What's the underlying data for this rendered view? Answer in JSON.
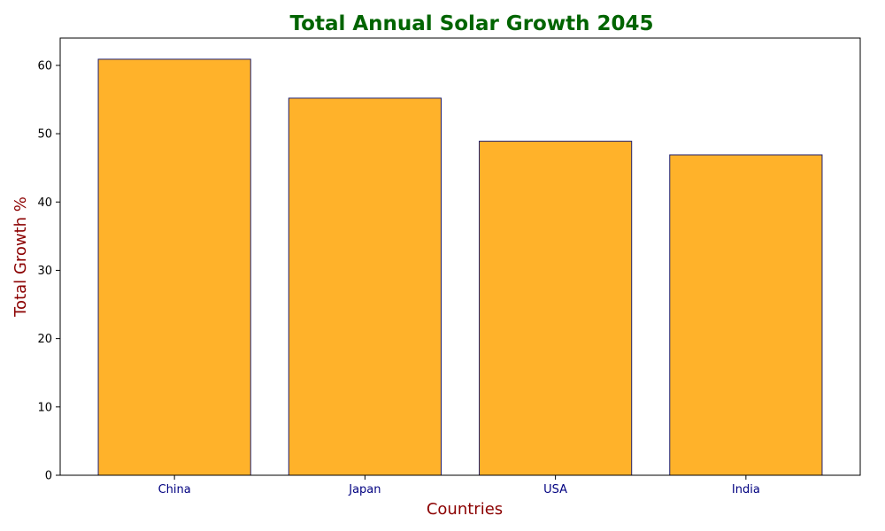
{
  "chart_data": {
    "type": "bar",
    "title": "Total Annual Solar Growth 2045",
    "xlabel": "Countries",
    "ylabel": "Total Growth %",
    "categories": [
      "China",
      "Japan",
      "USA",
      "India"
    ],
    "values": [
      60.9,
      55.2,
      48.9,
      46.9
    ],
    "ylim": [
      0,
      64
    ],
    "yticks": [
      0,
      10,
      20,
      30,
      40,
      50,
      60
    ],
    "grid": false,
    "colors": {
      "bar_fill": "#ffb22a",
      "bar_edge": "#1f1f6e",
      "title": "#006400",
      "axis_label": "#8b0000",
      "x_tick_label": "#000080",
      "y_tick_label": "#000000"
    }
  }
}
